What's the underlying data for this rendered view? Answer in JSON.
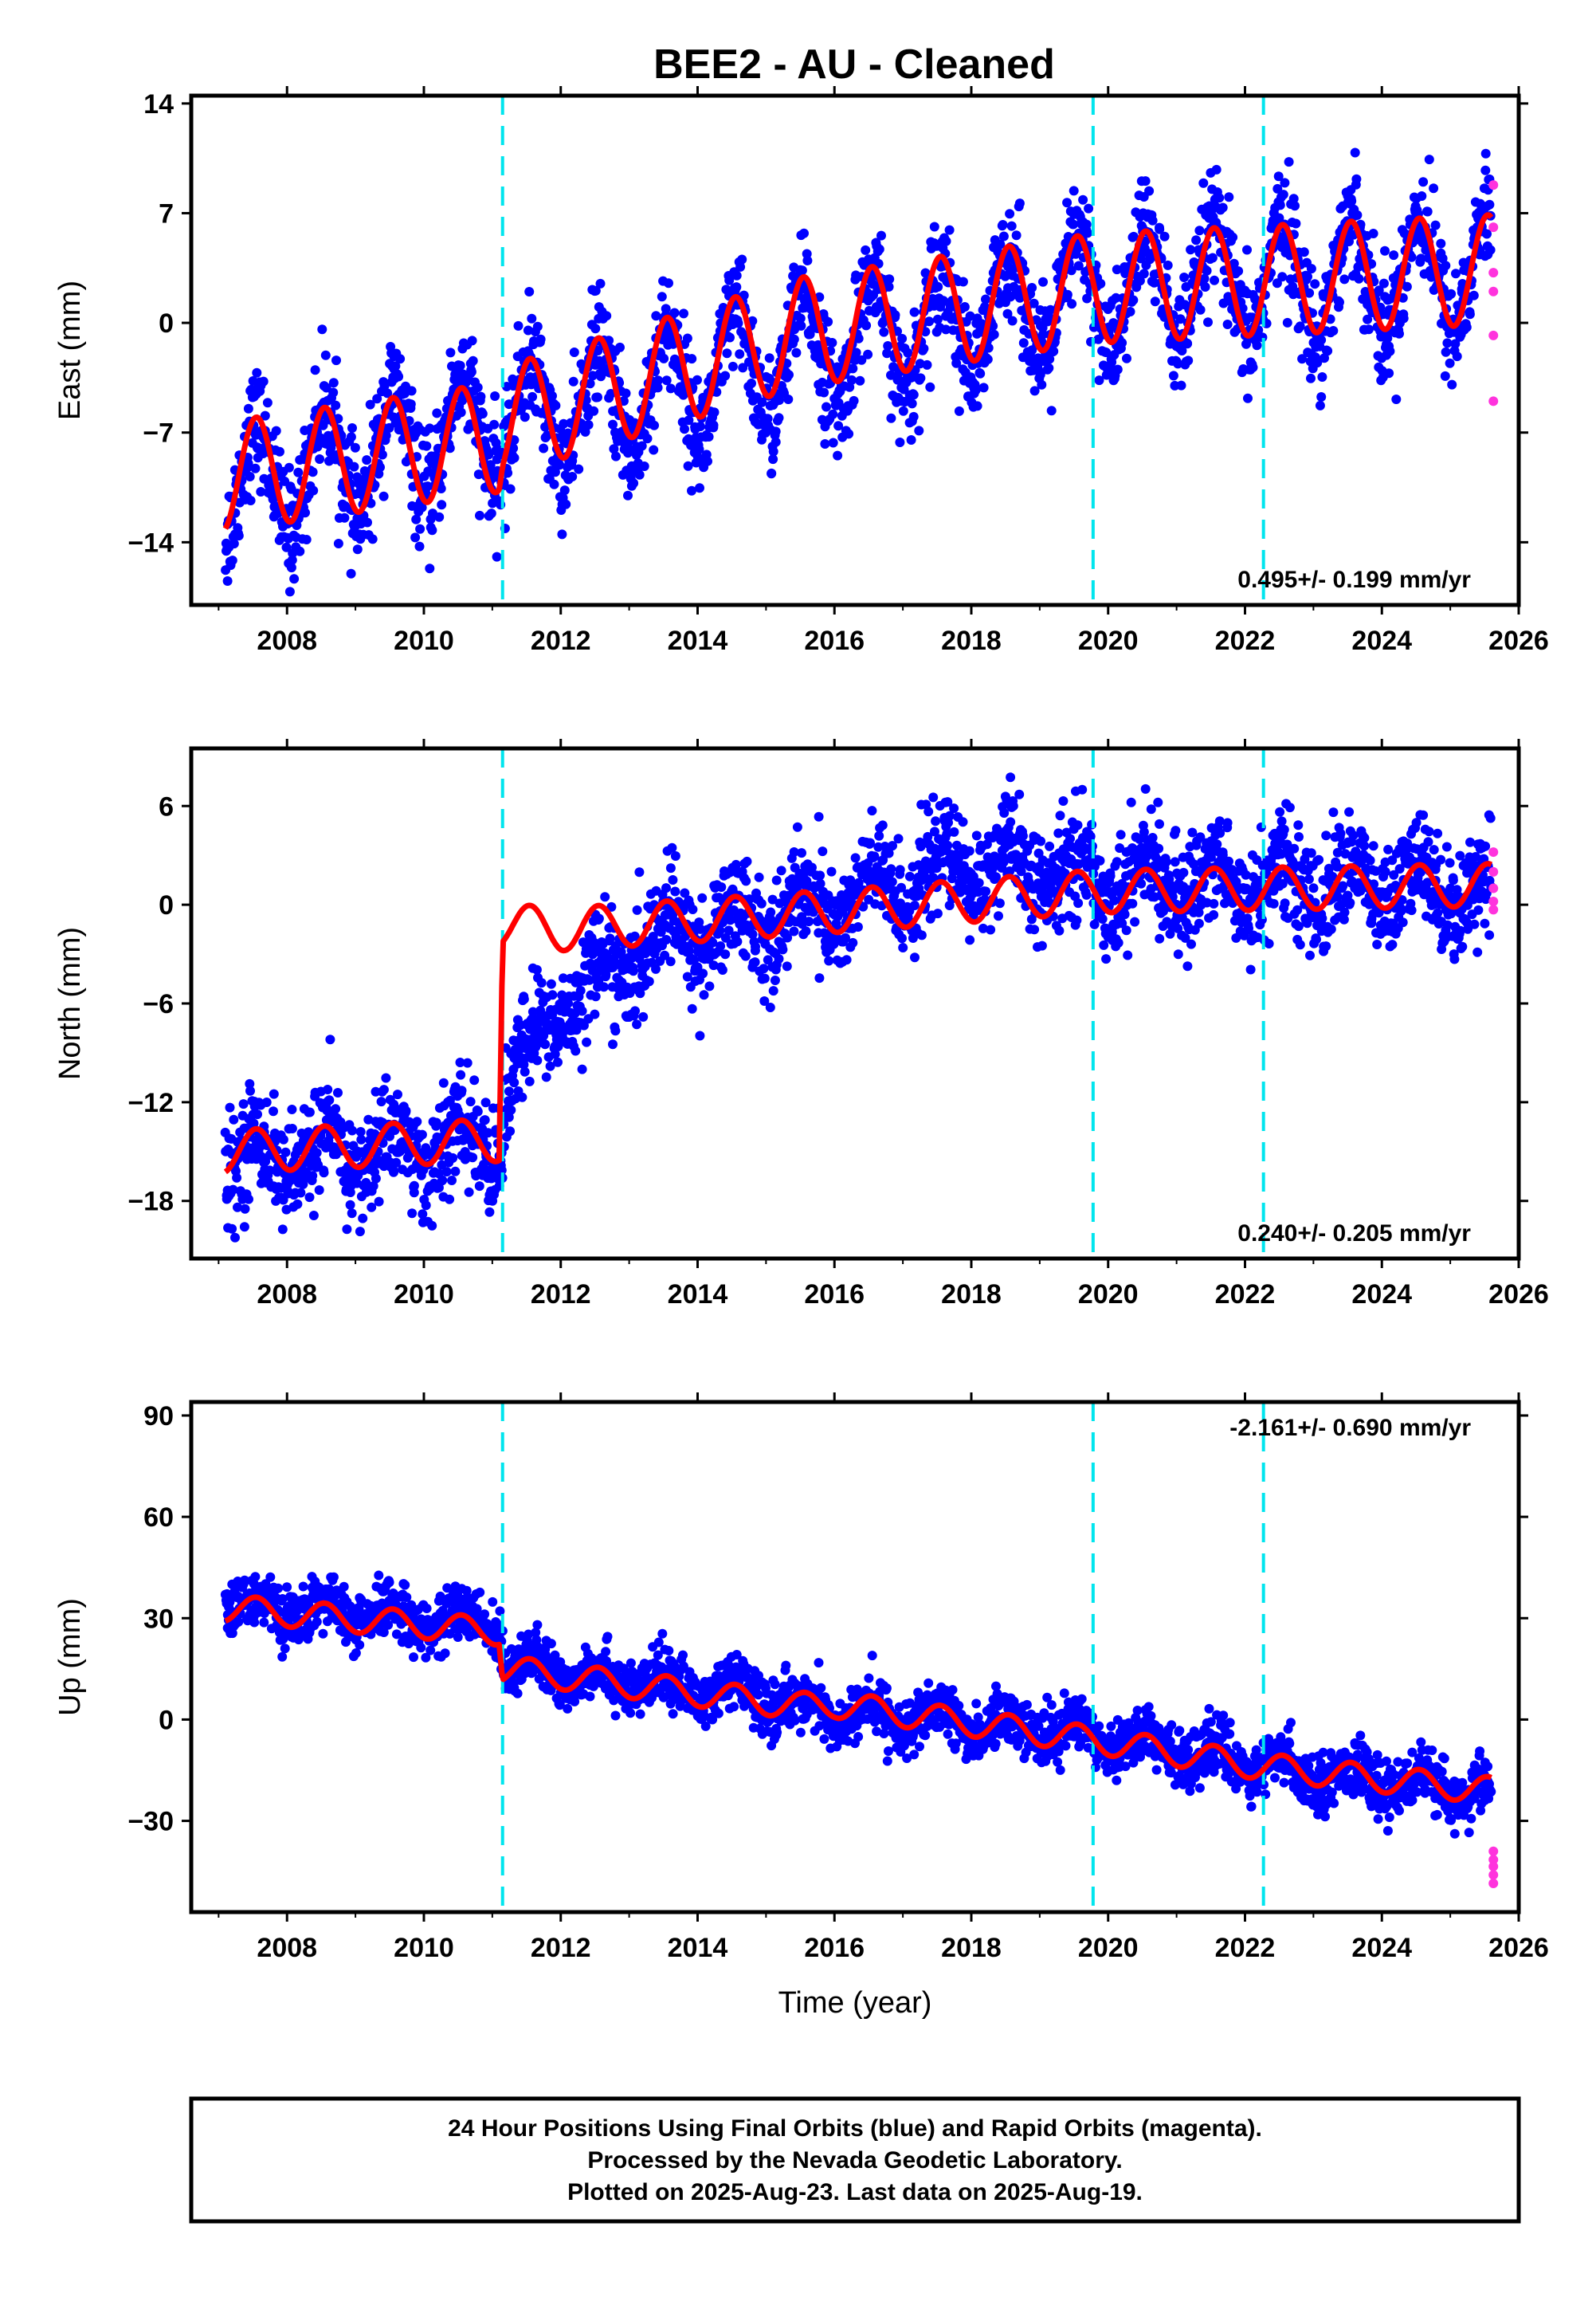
{
  "title": "BEE2  - AU - Cleaned",
  "colors": {
    "final": "#0000ff",
    "rapid": "#ff33dd",
    "model": "#ff0000",
    "offset": "#00e5ee"
  },
  "offset_lines": [
    2011.15,
    2019.78,
    2022.27
  ],
  "footer": {
    "line1": "24 Hour Positions Using Final Orbits (blue) and Rapid Orbits (magenta).",
    "line2": "Processed by the Nevada Geodetic Laboratory.",
    "line3": "Plotted on 2025-Aug-23. Last data on 2025-Aug-19."
  },
  "chart_data": [
    {
      "type": "scatter",
      "id": "east",
      "xlabel": "",
      "ylabel": "East (mm)",
      "xlim": [
        2006.6,
        2026.0
      ],
      "ylim": [
        -18,
        14.5
      ],
      "xticks": [
        2008,
        2010,
        2012,
        2014,
        2016,
        2018,
        2020,
        2022,
        2024,
        2026
      ],
      "yticks": [
        14,
        7,
        0,
        -7,
        -14
      ],
      "ytick_labels": [
        "14",
        "7",
        "0",
        "−7",
        "−14"
      ],
      "rate": "0.495+/- 0.199 mm/yr",
      "series": [
        {
          "kind": "final",
          "trend": [
            [
              2007.1,
              -10.5
            ],
            [
              2011.15,
              -6.5
            ],
            [
              2016.0,
              -1.5
            ],
            [
              2019.78,
              2.0
            ],
            [
              2025.6,
              3.5
            ]
          ],
          "noise": 1.8,
          "season": 3.6
        },
        {
          "kind": "rapid",
          "points": [
            [
              2025.63,
              8.8
            ],
            [
              2025.63,
              6.1
            ],
            [
              2025.63,
              3.2
            ],
            [
              2025.63,
              2.0
            ],
            [
              2025.63,
              -0.8
            ],
            [
              2025.63,
              -5.0
            ]
          ]
        },
        {
          "kind": "model",
          "trend": [
            [
              2007.1,
              -9.8
            ],
            [
              2011.1,
              -7.3
            ],
            [
              2011.15,
              -6.3
            ],
            [
              2015.5,
              -0.6
            ],
            [
              2019.78,
              2.2
            ],
            [
              2025.6,
              3.4
            ]
          ],
          "amplitude": 3.5
        }
      ]
    },
    {
      "type": "scatter",
      "id": "north",
      "xlabel": "",
      "ylabel": "North (mm)",
      "xlim": [
        2006.6,
        2026.0
      ],
      "ylim": [
        -21.5,
        9.5
      ],
      "xticks": [
        2008,
        2010,
        2012,
        2014,
        2016,
        2018,
        2020,
        2022,
        2024,
        2026
      ],
      "yticks": [
        6,
        0,
        -6,
        -12,
        -18
      ],
      "ytick_labels": [
        "6",
        "0",
        "−6",
        "−12",
        "−18"
      ],
      "rate": "0.240+/- 0.205 mm/yr",
      "series": [
        {
          "kind": "final",
          "trend": [
            [
              2007.1,
              -15.5
            ],
            [
              2011.1,
              -14.5
            ],
            [
              2011.2,
              -11.5
            ],
            [
              2012.0,
              -6.0
            ],
            [
              2013.5,
              -2.0
            ],
            [
              2016.0,
              0.0
            ],
            [
              2018.0,
              2.5
            ],
            [
              2020.0,
              1.5
            ],
            [
              2025.6,
              1.0
            ]
          ],
          "noise": 1.6,
          "season": 1.4
        },
        {
          "kind": "rapid",
          "points": [
            [
              2025.63,
              3.2
            ],
            [
              2025.63,
              2.0
            ],
            [
              2025.63,
              1.0
            ],
            [
              2025.63,
              0.2
            ],
            [
              2025.63,
              -0.3
            ]
          ]
        },
        {
          "kind": "model",
          "trend": [
            [
              2007.1,
              -15.0
            ],
            [
              2011.1,
              -14.3
            ],
            [
              2011.15,
              -1.2
            ],
            [
              2012.0,
              -1.5
            ],
            [
              2016.0,
              -0.4
            ],
            [
              2019.78,
              0.8
            ],
            [
              2025.6,
              1.2
            ]
          ],
          "amplitude": 1.3
        }
      ]
    },
    {
      "type": "scatter",
      "id": "up",
      "xlabel": "Time (year)",
      "ylabel": "Up (mm)",
      "xlim": [
        2006.6,
        2026.0
      ],
      "ylim": [
        -57,
        94
      ],
      "xticks": [
        2008,
        2010,
        2012,
        2014,
        2016,
        2018,
        2020,
        2022,
        2024,
        2026
      ],
      "yticks": [
        90,
        60,
        30,
        0,
        -30
      ],
      "ytick_labels": [
        "90",
        "60",
        "30",
        "0",
        "−30"
      ],
      "rate": "-2.161+/- 0.690 mm/yr",
      "series": [
        {
          "kind": "final",
          "trend": [
            [
              2007.1,
              34.0
            ],
            [
              2011.1,
              28.0
            ],
            [
              2011.2,
              16.0
            ],
            [
              2014.8,
              7.0
            ],
            [
              2016.0,
              2.0
            ],
            [
              2019.78,
              -4.0
            ],
            [
              2022.27,
              -14.0
            ],
            [
              2025.6,
              -22.0
            ]
          ],
          "noise": 4.0,
          "season": 3.5
        },
        {
          "kind": "rapid",
          "points": [
            [
              2025.63,
              -39.0
            ],
            [
              2025.63,
              -41.5
            ],
            [
              2025.63,
              -43.5
            ],
            [
              2025.63,
              -46.0
            ],
            [
              2025.63,
              -48.5
            ]
          ]
        },
        {
          "kind": "model",
          "trend": [
            [
              2007.1,
              33.0
            ],
            [
              2011.1,
              26.0
            ],
            [
              2011.15,
              15.0
            ],
            [
              2015.5,
              4.0
            ],
            [
              2016.0,
              4.5
            ],
            [
              2019.78,
              -6.0
            ],
            [
              2022.27,
              -14.0
            ],
            [
              2025.6,
              -21.0
            ]
          ],
          "amplitude": 4.0
        }
      ]
    }
  ]
}
